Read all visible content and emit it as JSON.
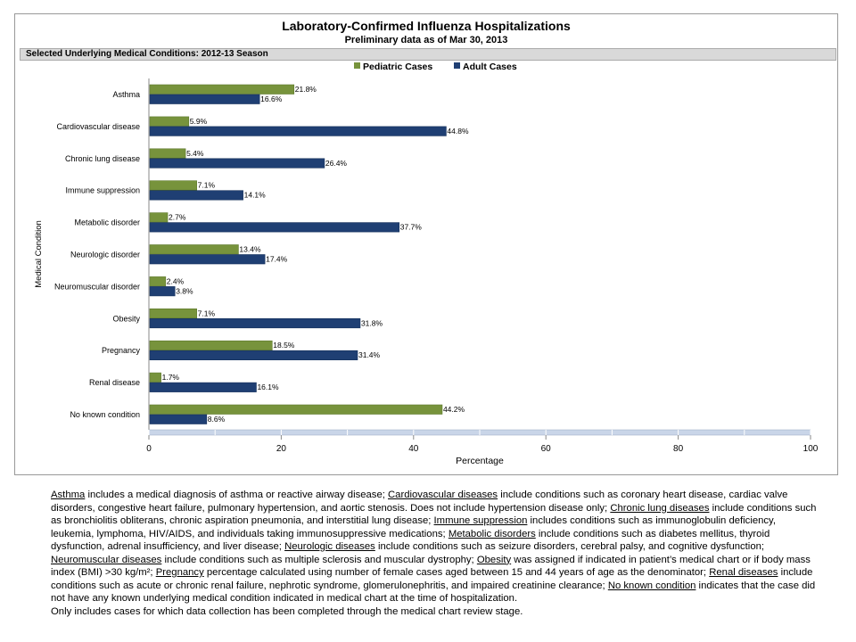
{
  "title": "Laboratory-Confirmed Influenza Hospitalizations",
  "subtitle": "Preliminary data as of Mar 30, 2013",
  "section_header": "Selected Underlying Medical Conditions: 2012-13 Season",
  "chart_data": {
    "type": "bar",
    "orientation": "horizontal",
    "categories": [
      "Asthma",
      "Cardiovascular disease",
      "Chronic lung disease",
      "Immune suppression",
      "Metabolic disorder",
      "Neurologic disorder",
      "Neuromuscular disorder",
      "Obesity",
      "Pregnancy",
      "Renal disease",
      "No known condition"
    ],
    "series": [
      {
        "name": "Pediatric Cases",
        "color": "#77933c",
        "values": [
          21.8,
          5.9,
          5.4,
          7.1,
          2.7,
          13.4,
          2.4,
          7.1,
          18.5,
          1.7,
          44.2
        ],
        "labels": [
          "21.8%",
          "5.9%",
          "5.4%",
          "7.1%",
          "2.7%",
          "13.4%",
          "2.4%",
          "7.1%",
          "18.5%",
          "1.7%",
          "44.2%"
        ]
      },
      {
        "name": "Adult Cases",
        "color": "#1f3f73",
        "values": [
          16.6,
          44.8,
          26.4,
          14.1,
          37.7,
          17.4,
          3.8,
          31.8,
          31.4,
          16.1,
          8.6
        ],
        "labels": [
          "16.6%",
          "44.8%",
          "26.4%",
          "14.1%",
          "37.7%",
          "17.4%",
          "3.8%",
          "31.8%",
          "31.4%",
          "16.1%",
          "8.6%"
        ]
      }
    ],
    "xlabel": "Percentage",
    "ylabel": "Medical Condition",
    "xlim": [
      0,
      100
    ],
    "xticks": [
      "0",
      "20",
      "40",
      "60",
      "80",
      "100"
    ],
    "grid": false,
    "legend_position": "top"
  },
  "notes": [
    {
      "term": "Asthma",
      "text": " includes a medical diagnosis of asthma or reactive airway disease; "
    },
    {
      "term": "Cardiovascular diseases",
      "text": " include conditions such as coronary heart disease, cardiac valve disorders, congestive heart failure, pulmonary hypertension, and aortic stenosis.  Does not include hypertension disease only; "
    },
    {
      "term": "Chronic lung diseases",
      "text": " include conditions such as bronchiolitis obliterans, chronic aspiration pneumonia, and interstitial lung disease; "
    },
    {
      "term": "Immune suppression",
      "text": " includes conditions such as immunoglobulin deficiency, leukemia, lymphoma, HIV/AIDS, and individuals taking immunosuppressive medications; "
    },
    {
      "term": "Metabolic disorders",
      "text": " include conditions such as diabetes mellitus, thyroid dysfunction, adrenal insufficiency, and liver disease; "
    },
    {
      "term": "Neurologic diseases",
      "text": " include conditions such as seizure disorders, cerebral palsy, and cognitive dysfunction; "
    },
    {
      "term": "Neuromuscular diseases",
      "text": " include conditions such as multiple sclerosis and muscular dystrophy; "
    },
    {
      "term": "Obesity",
      "text": " was assigned if indicated in patient’s medical chart or if body mass index (BMI) >30 kg/m²;  "
    },
    {
      "term": "Pregnancy",
      "text": " percentage calculated using number of female cases aged between 15 and 44 years of age as the denominator; "
    },
    {
      "term": "Renal diseases",
      "text": " include conditions such as acute or chronic renal failure, nephrotic syndrome, glomerulonephritis, and impaired creatinine clearance; "
    },
    {
      "term": "No known condition",
      "text": " indicates that the case did not have any known underlying medical condition indicated in medical chart at the time of hospitalization."
    }
  ],
  "footnote": "Only includes cases for which data collection has been completed through the medical chart review stage."
}
